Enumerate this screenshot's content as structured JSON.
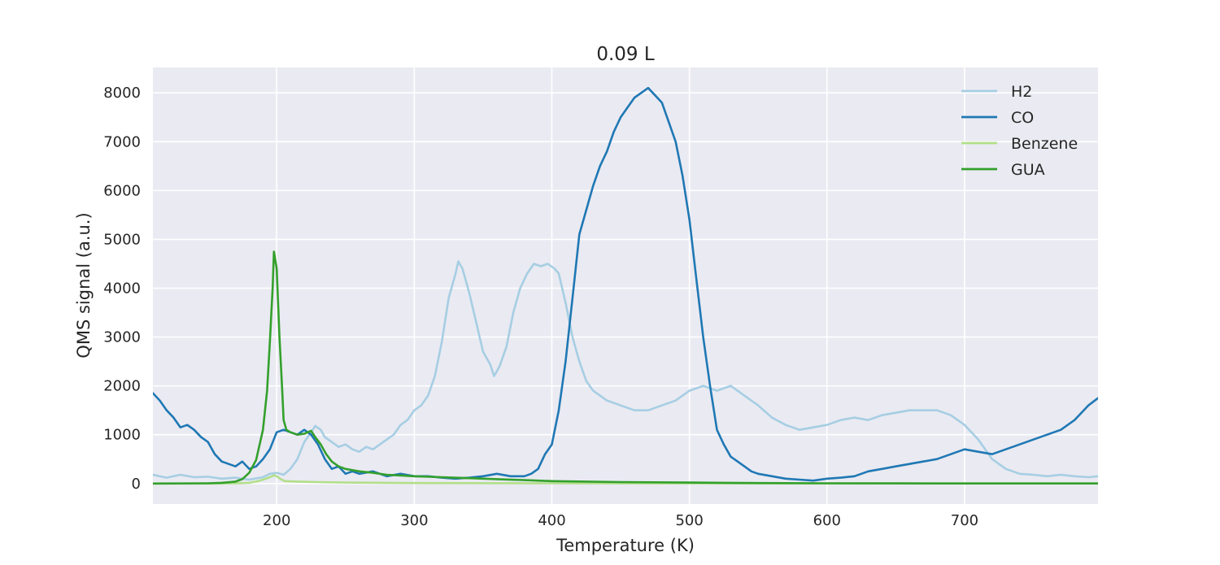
{
  "chart_data": {
    "type": "line",
    "title": "0.09 L",
    "xlabel": "Temperature (K)",
    "ylabel": "QMS signal (a.u.)",
    "xlim": [
      110,
      797
    ],
    "ylim": [
      -420,
      8520
    ],
    "xticks": [
      200,
      300,
      400,
      500,
      600,
      700
    ],
    "yticks": [
      0,
      1000,
      2000,
      3000,
      4000,
      5000,
      6000,
      7000,
      8000
    ],
    "grid": true,
    "legend_position": "top-right",
    "series": [
      {
        "name": "H2",
        "color": "#a6cee3",
        "points": [
          [
            110,
            180
          ],
          [
            120,
            120
          ],
          [
            130,
            180
          ],
          [
            140,
            130
          ],
          [
            150,
            140
          ],
          [
            160,
            100
          ],
          [
            170,
            120
          ],
          [
            180,
            80
          ],
          [
            190,
            130
          ],
          [
            195,
            200
          ],
          [
            200,
            220
          ],
          [
            205,
            180
          ],
          [
            210,
            300
          ],
          [
            215,
            500
          ],
          [
            220,
            850
          ],
          [
            225,
            1050
          ],
          [
            228,
            1180
          ],
          [
            232,
            1100
          ],
          [
            235,
            950
          ],
          [
            240,
            850
          ],
          [
            245,
            750
          ],
          [
            250,
            800
          ],
          [
            255,
            700
          ],
          [
            260,
            650
          ],
          [
            265,
            750
          ],
          [
            270,
            700
          ],
          [
            275,
            800
          ],
          [
            280,
            900
          ],
          [
            285,
            1000
          ],
          [
            290,
            1200
          ],
          [
            295,
            1300
          ],
          [
            300,
            1500
          ],
          [
            305,
            1600
          ],
          [
            310,
            1800
          ],
          [
            315,
            2200
          ],
          [
            320,
            2900
          ],
          [
            325,
            3800
          ],
          [
            330,
            4300
          ],
          [
            332,
            4550
          ],
          [
            335,
            4400
          ],
          [
            340,
            3900
          ],
          [
            345,
            3300
          ],
          [
            350,
            2700
          ],
          [
            355,
            2450
          ],
          [
            358,
            2200
          ],
          [
            362,
            2400
          ],
          [
            367,
            2800
          ],
          [
            372,
            3500
          ],
          [
            377,
            4000
          ],
          [
            382,
            4300
          ],
          [
            387,
            4500
          ],
          [
            392,
            4450
          ],
          [
            397,
            4500
          ],
          [
            402,
            4400
          ],
          [
            405,
            4300
          ],
          [
            410,
            3700
          ],
          [
            415,
            3000
          ],
          [
            420,
            2500
          ],
          [
            425,
            2100
          ],
          [
            430,
            1900
          ],
          [
            440,
            1700
          ],
          [
            450,
            1600
          ],
          [
            460,
            1500
          ],
          [
            470,
            1500
          ],
          [
            480,
            1600
          ],
          [
            490,
            1700
          ],
          [
            500,
            1900
          ],
          [
            510,
            2000
          ],
          [
            520,
            1900
          ],
          [
            530,
            2000
          ],
          [
            540,
            1800
          ],
          [
            550,
            1600
          ],
          [
            560,
            1350
          ],
          [
            570,
            1200
          ],
          [
            580,
            1100
          ],
          [
            590,
            1150
          ],
          [
            600,
            1200
          ],
          [
            610,
            1300
          ],
          [
            620,
            1350
          ],
          [
            630,
            1300
          ],
          [
            640,
            1400
          ],
          [
            650,
            1450
          ],
          [
            660,
            1500
          ],
          [
            670,
            1500
          ],
          [
            680,
            1500
          ],
          [
            690,
            1400
          ],
          [
            700,
            1200
          ],
          [
            710,
            900
          ],
          [
            720,
            500
          ],
          [
            730,
            300
          ],
          [
            740,
            200
          ],
          [
            750,
            180
          ],
          [
            760,
            150
          ],
          [
            770,
            180
          ],
          [
            780,
            150
          ],
          [
            790,
            130
          ],
          [
            797,
            150
          ]
        ]
      },
      {
        "name": "CO",
        "color": "#1f78b4",
        "points": [
          [
            110,
            1850
          ],
          [
            115,
            1700
          ],
          [
            120,
            1500
          ],
          [
            125,
            1350
          ],
          [
            130,
            1150
          ],
          [
            135,
            1200
          ],
          [
            140,
            1100
          ],
          [
            145,
            950
          ],
          [
            150,
            850
          ],
          [
            155,
            600
          ],
          [
            160,
            450
          ],
          [
            170,
            350
          ],
          [
            175,
            450
          ],
          [
            180,
            300
          ],
          [
            185,
            350
          ],
          [
            190,
            500
          ],
          [
            195,
            700
          ],
          [
            200,
            1050
          ],
          [
            205,
            1100
          ],
          [
            210,
            1050
          ],
          [
            215,
            1000
          ],
          [
            220,
            1100
          ],
          [
            225,
            1000
          ],
          [
            230,
            800
          ],
          [
            235,
            500
          ],
          [
            240,
            300
          ],
          [
            245,
            350
          ],
          [
            250,
            200
          ],
          [
            255,
            250
          ],
          [
            260,
            200
          ],
          [
            270,
            250
          ],
          [
            280,
            150
          ],
          [
            290,
            200
          ],
          [
            300,
            150
          ],
          [
            310,
            150
          ],
          [
            320,
            120
          ],
          [
            330,
            100
          ],
          [
            340,
            120
          ],
          [
            350,
            150
          ],
          [
            360,
            200
          ],
          [
            370,
            150
          ],
          [
            380,
            150
          ],
          [
            385,
            200
          ],
          [
            390,
            300
          ],
          [
            395,
            600
          ],
          [
            400,
            800
          ],
          [
            405,
            1500
          ],
          [
            410,
            2500
          ],
          [
            415,
            3800
          ],
          [
            420,
            5100
          ],
          [
            425,
            5600
          ],
          [
            430,
            6100
          ],
          [
            435,
            6500
          ],
          [
            440,
            6800
          ],
          [
            445,
            7200
          ],
          [
            450,
            7500
          ],
          [
            455,
            7700
          ],
          [
            460,
            7900
          ],
          [
            465,
            8000
          ],
          [
            470,
            8100
          ],
          [
            475,
            7950
          ],
          [
            480,
            7800
          ],
          [
            485,
            7400
          ],
          [
            490,
            7000
          ],
          [
            495,
            6300
          ],
          [
            500,
            5400
          ],
          [
            505,
            4200
          ],
          [
            510,
            3000
          ],
          [
            515,
            2000
          ],
          [
            520,
            1100
          ],
          [
            525,
            800
          ],
          [
            530,
            550
          ],
          [
            535,
            450
          ],
          [
            540,
            350
          ],
          [
            545,
            250
          ],
          [
            550,
            200
          ],
          [
            560,
            150
          ],
          [
            570,
            100
          ],
          [
            580,
            80
          ],
          [
            590,
            60
          ],
          [
            600,
            100
          ],
          [
            610,
            120
          ],
          [
            620,
            150
          ],
          [
            630,
            250
          ],
          [
            640,
            300
          ],
          [
            650,
            350
          ],
          [
            660,
            400
          ],
          [
            670,
            450
          ],
          [
            680,
            500
          ],
          [
            690,
            600
          ],
          [
            700,
            700
          ],
          [
            710,
            650
          ],
          [
            720,
            600
          ],
          [
            730,
            700
          ],
          [
            740,
            800
          ],
          [
            750,
            900
          ],
          [
            760,
            1000
          ],
          [
            770,
            1100
          ],
          [
            780,
            1300
          ],
          [
            790,
            1600
          ],
          [
            797,
            1750
          ]
        ]
      },
      {
        "name": "Benzene",
        "color": "#b2df8a",
        "points": [
          [
            110,
            0
          ],
          [
            150,
            0
          ],
          [
            170,
            5
          ],
          [
            180,
            15
          ],
          [
            185,
            40
          ],
          [
            190,
            80
          ],
          [
            195,
            130
          ],
          [
            198,
            170
          ],
          [
            200,
            150
          ],
          [
            203,
            90
          ],
          [
            206,
            50
          ],
          [
            215,
            40
          ],
          [
            230,
            30
          ],
          [
            250,
            20
          ],
          [
            300,
            10
          ],
          [
            400,
            5
          ],
          [
            500,
            3
          ],
          [
            600,
            2
          ],
          [
            797,
            2
          ]
        ]
      },
      {
        "name": "GUA",
        "color": "#33a02c",
        "points": [
          [
            110,
            0
          ],
          [
            150,
            5
          ],
          [
            160,
            15
          ],
          [
            170,
            40
          ],
          [
            175,
            90
          ],
          [
            180,
            220
          ],
          [
            185,
            480
          ],
          [
            190,
            1100
          ],
          [
            193,
            1900
          ],
          [
            195,
            2900
          ],
          [
            197,
            4000
          ],
          [
            198,
            4750
          ],
          [
            200,
            4400
          ],
          [
            202,
            3000
          ],
          [
            204,
            1900
          ],
          [
            205,
            1300
          ],
          [
            207,
            1100
          ],
          [
            210,
            1050
          ],
          [
            215,
            1000
          ],
          [
            220,
            1020
          ],
          [
            225,
            1080
          ],
          [
            228,
            950
          ],
          [
            232,
            800
          ],
          [
            236,
            600
          ],
          [
            240,
            450
          ],
          [
            245,
            350
          ],
          [
            250,
            300
          ],
          [
            260,
            250
          ],
          [
            270,
            220
          ],
          [
            280,
            180
          ],
          [
            300,
            150
          ],
          [
            320,
            130
          ],
          [
            340,
            110
          ],
          [
            360,
            90
          ],
          [
            380,
            70
          ],
          [
            400,
            50
          ],
          [
            450,
            30
          ],
          [
            500,
            20
          ],
          [
            550,
            10
          ],
          [
            600,
            5
          ],
          [
            650,
            3
          ],
          [
            700,
            2
          ],
          [
            797,
            2
          ]
        ]
      }
    ]
  }
}
